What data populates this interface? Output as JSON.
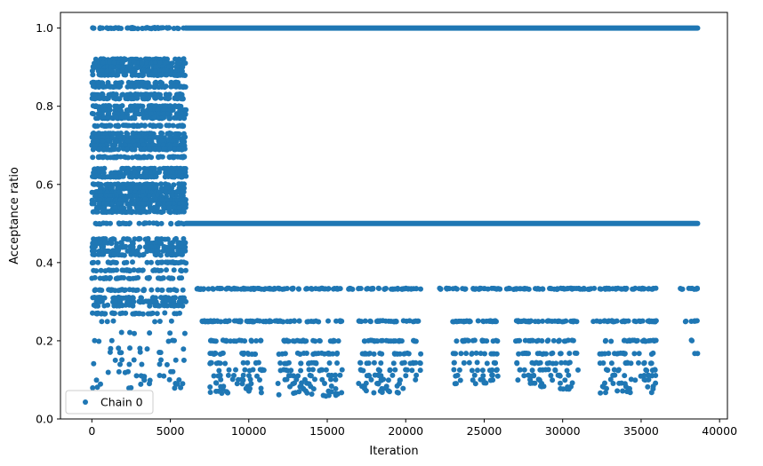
{
  "chart_data": {
    "type": "scatter",
    "title": "",
    "xlabel": "Iteration",
    "ylabel": "Acceptance ratio",
    "xlim": [
      -2000,
      40500
    ],
    "ylim": [
      0,
      1.04
    ],
    "xticks": [
      0,
      5000,
      10000,
      15000,
      20000,
      25000,
      30000,
      35000,
      40000
    ],
    "xtick_labels": [
      "0",
      "5000",
      "10000",
      "15000",
      "20000",
      "25000",
      "30000",
      "35000",
      "40000"
    ],
    "yticks": [
      0.0,
      0.2,
      0.4,
      0.6,
      0.8,
      1.0
    ],
    "ytick_labels": [
      "0.0",
      "0.2",
      "0.4",
      "0.6",
      "0.8",
      "1.0"
    ],
    "grid": false,
    "legend": {
      "placement": "lower-left",
      "entries": [
        "Chain 0"
      ]
    },
    "series": [
      {
        "name": "Chain 0",
        "color": "#1f77b4",
        "marker": "circle",
        "total_iterations": 38600,
        "segments": [
          {
            "x_range": [
              0,
              6000
            ],
            "y_values": [
              1.0,
              0.92,
              0.91,
              0.9,
              0.89,
              0.88,
              0.86,
              0.85,
              0.83,
              0.82,
              0.8,
              0.79,
              0.78,
              0.77,
              0.75,
              0.73,
              0.72,
              0.71,
              0.7,
              0.69,
              0.67,
              0.64,
              0.63,
              0.62,
              0.6,
              0.59,
              0.58,
              0.57,
              0.56,
              0.55,
              0.54,
              0.53,
              0.5,
              0.46,
              0.45,
              0.44,
              0.43,
              0.42,
              0.4,
              0.38,
              0.36,
              0.33,
              0.31,
              0.3,
              0.29,
              0.27,
              0.25,
              0.22,
              0.2,
              0.18,
              0.17,
              0.15,
              0.14,
              0.12,
              0.11,
              0.1,
              0.09,
              0.08
            ]
          },
          {
            "x_range": [
              6000,
              38600
            ],
            "y_values": [
              1.0,
              0.5
            ]
          },
          {
            "x_range": [
              6600,
              16000
            ],
            "y_values": [
              0.333
            ]
          },
          {
            "x_range": [
              16300,
              21000
            ],
            "y_values": [
              0.333
            ]
          },
          {
            "x_range": [
              22100,
              36000
            ],
            "y_values": [
              0.333
            ]
          },
          {
            "x_range": [
              37500,
              38600
            ],
            "y_values": [
              0.333
            ]
          },
          {
            "x_range": [
              7000,
              16000
            ],
            "y_values": [
              0.25
            ]
          },
          {
            "x_range": [
              17000,
              21000
            ],
            "y_values": [
              0.25
            ]
          },
          {
            "x_range": [
              22500,
              26000
            ],
            "y_values": [
              0.25
            ]
          },
          {
            "x_range": [
              26700,
              31000
            ],
            "y_values": [
              0.25
            ]
          },
          {
            "x_range": [
              31800,
              36000
            ],
            "y_values": [
              0.25
            ]
          },
          {
            "x_range": [
              37800,
              38600
            ],
            "y_values": [
              0.25
            ]
          },
          {
            "x_range": [
              7500,
              11000
            ],
            "y_values": [
              0.2,
              0.167,
              0.143,
              0.125,
              0.111,
              0.1,
              0.091,
              0.083,
              0.077,
              0.071,
              0.067
            ]
          },
          {
            "x_range": [
              11800,
              16000
            ],
            "y_values": [
              0.2,
              0.167,
              0.143,
              0.125,
              0.111,
              0.1,
              0.091,
              0.083,
              0.077,
              0.071,
              0.067,
              0.063,
              0.059
            ]
          },
          {
            "x_range": [
              17000,
              21000
            ],
            "y_values": [
              0.2,
              0.167,
              0.143,
              0.125,
              0.111,
              0.1,
              0.091,
              0.083,
              0.077,
              0.071,
              0.067
            ]
          },
          {
            "x_range": [
              23000,
              26000
            ],
            "y_values": [
              0.2,
              0.167,
              0.143,
              0.125,
              0.111,
              0.1,
              0.091
            ]
          },
          {
            "x_range": [
              27000,
              31000
            ],
            "y_values": [
              0.2,
              0.167,
              0.143,
              0.125,
              0.111,
              0.1,
              0.091,
              0.083,
              0.077
            ]
          },
          {
            "x_range": [
              32300,
              36000
            ],
            "y_values": [
              0.2,
              0.167,
              0.143,
              0.125,
              0.111,
              0.1,
              0.091,
              0.083,
              0.077,
              0.071,
              0.067
            ]
          },
          {
            "x_range": [
              38200,
              38600
            ],
            "y_values": [
              0.2,
              0.167
            ]
          }
        ]
      }
    ]
  }
}
